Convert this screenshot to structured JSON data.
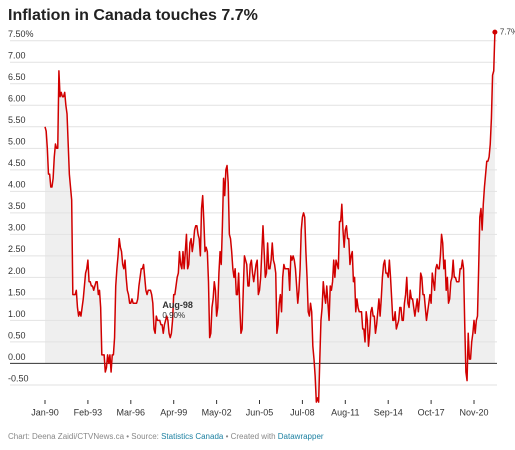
{
  "chart_data": {
    "type": "line",
    "title": "Inflation in Canada touches 7.7%",
    "categories": [
      "Jan-90",
      null,
      null,
      null,
      null,
      null,
      null,
      null,
      null,
      null,
      null,
      null,
      null,
      null,
      null,
      null,
      null,
      null,
      null,
      null,
      null,
      null,
      null,
      null,
      null,
      null,
      null,
      null,
      null,
      null,
      null,
      null,
      null,
      null,
      null,
      null,
      null,
      "Feb-93",
      null,
      null,
      null,
      null,
      null,
      null,
      null,
      null,
      null,
      null,
      null,
      null,
      null,
      null,
      null,
      null,
      null,
      null,
      null,
      null,
      null,
      null,
      null,
      null,
      null,
      null,
      null,
      null,
      null,
      null,
      null,
      null,
      null,
      null,
      null,
      null,
      "Mar-96",
      null,
      null,
      null,
      null,
      null,
      null,
      null,
      null,
      null,
      null,
      null,
      null,
      null,
      null,
      null,
      null,
      null,
      null,
      null,
      null,
      null,
      null,
      null,
      null,
      null,
      null,
      null,
      null,
      null,
      null,
      null,
      null,
      null,
      null,
      null,
      null,
      "Apr-99",
      null,
      null,
      null,
      null,
      null,
      null,
      null,
      null,
      null,
      null,
      null,
      null,
      null,
      null,
      null,
      null,
      null,
      null,
      null,
      null,
      null,
      null,
      null,
      null,
      null,
      null,
      null,
      null,
      null,
      null,
      null,
      null,
      null,
      null,
      null,
      null,
      "May-02",
      null,
      null,
      null,
      null,
      null,
      null,
      null,
      null,
      null,
      null,
      null,
      null,
      null,
      null,
      null,
      null,
      null,
      null,
      null,
      null,
      null,
      null,
      null,
      null,
      null,
      null,
      null,
      null,
      null,
      null,
      null,
      null,
      null,
      null,
      null,
      null,
      "Jun-05",
      null,
      null,
      null,
      null,
      null,
      null,
      null,
      null,
      null,
      null,
      null,
      null,
      null,
      null,
      null,
      null,
      null,
      null,
      null,
      null,
      null,
      null,
      null,
      null,
      null,
      null,
      null,
      null,
      null,
      null,
      null,
      null,
      null,
      null,
      null,
      null,
      "Jul-08",
      null,
      null,
      null,
      null,
      null,
      null,
      null,
      null,
      null,
      null,
      null,
      null,
      null,
      null,
      null,
      null,
      null,
      null,
      null,
      null,
      null,
      null,
      null,
      null,
      null,
      null,
      null,
      null,
      null,
      null,
      null,
      null,
      null,
      null,
      null,
      null,
      "Aug-11",
      null,
      null,
      null,
      null,
      null,
      null,
      null,
      null,
      null,
      null,
      null,
      null,
      null,
      null,
      null,
      null,
      null,
      null,
      null,
      null,
      null,
      null,
      null,
      null,
      null,
      null,
      null,
      null,
      null,
      null,
      null,
      null,
      null,
      null,
      null,
      null,
      "Sep-14",
      null,
      null,
      null,
      null,
      null,
      null,
      null,
      null,
      null,
      null,
      null,
      null,
      null,
      null,
      null,
      null,
      null,
      null,
      null,
      null,
      null,
      null,
      null,
      null,
      null,
      null,
      null,
      null,
      null,
      null,
      null,
      null,
      null,
      null,
      null,
      null,
      "Oct-17",
      null,
      null,
      null,
      null,
      null,
      null,
      null,
      null,
      null,
      null,
      null,
      null,
      null,
      null,
      null,
      null,
      null,
      null,
      null,
      null,
      null,
      null,
      null,
      null,
      null,
      null,
      null,
      null,
      null,
      null,
      null,
      null,
      null,
      null,
      null,
      null,
      "Nov-20",
      null,
      null,
      null,
      null,
      null,
      null,
      null,
      null,
      null,
      null,
      null,
      null,
      null,
      null,
      null,
      null,
      null,
      null
    ],
    "series": [
      {
        "color": "#d10000",
        "values": [
          5.5,
          5.4,
          5.0,
          4.4,
          4.4,
          4.1,
          4.1,
          4.3,
          4.8,
          5.1,
          5.0,
          5.0,
          6.8,
          6.2,
          6.3,
          6.2,
          6.2,
          6.3,
          6.0,
          5.8,
          5.1,
          4.4,
          4.1,
          3.8,
          1.6,
          1.6,
          1.6,
          1.7,
          1.3,
          1.1,
          1.2,
          1.1,
          1.3,
          1.5,
          1.8,
          2.1,
          2.2,
          2.4,
          1.9,
          1.9,
          1.8,
          1.8,
          1.7,
          1.8,
          1.9,
          1.9,
          1.6,
          1.7,
          1.3,
          0.2,
          0.2,
          0.2,
          -0.2,
          -0.1,
          0.2,
          0.0,
          0.2,
          -0.2,
          0.2,
          0.2,
          0.6,
          1.8,
          2.2,
          2.5,
          2.9,
          2.7,
          2.6,
          2.3,
          2.2,
          2.4,
          2.0,
          1.7,
          1.6,
          1.4,
          1.4,
          1.5,
          1.4,
          1.4,
          1.4,
          1.4,
          1.5,
          1.8,
          2.0,
          2.2,
          2.2,
          2.3,
          2.0,
          1.7,
          1.6,
          1.7,
          1.7,
          1.7,
          1.6,
          1.4,
          0.8,
          0.7,
          1.1,
          1.0,
          1.0,
          1.0,
          0.9,
          0.9,
          0.7,
          0.9,
          1.0,
          1.1,
          1.0,
          0.7,
          0.6,
          0.7,
          1.0,
          1.6,
          1.6,
          1.8,
          2.0,
          2.1,
          2.6,
          2.3,
          2.2,
          2.6,
          2.2,
          2.6,
          3.0,
          2.2,
          2.3,
          2.8,
          2.9,
          2.6,
          2.8,
          3.1,
          3.2,
          3.2,
          3.0,
          2.9,
          2.5,
          3.6,
          3.9,
          3.3,
          2.6,
          2.7,
          2.6,
          1.9,
          0.6,
          0.7,
          1.3,
          1.5,
          1.9,
          1.7,
          1.1,
          1.3,
          2.1,
          2.6,
          2.3,
          3.2,
          4.3,
          3.9,
          4.5,
          4.6,
          4.2,
          3.0,
          2.9,
          2.6,
          2.2,
          2.0,
          2.2,
          1.6,
          1.6,
          2.1,
          1.3,
          0.7,
          0.8,
          1.7,
          2.5,
          2.4,
          2.3,
          1.8,
          1.8,
          2.3,
          2.4,
          2.1,
          1.9,
          2.1,
          2.3,
          2.4,
          1.6,
          1.7,
          2.0,
          2.6,
          3.2,
          2.6,
          2.0,
          2.1,
          2.8,
          2.2,
          2.2,
          2.4,
          2.8,
          2.4,
          2.3,
          2.1,
          0.7,
          0.9,
          1.4,
          1.6,
          1.2,
          2.0,
          2.3,
          2.2,
          2.2,
          2.2,
          2.2,
          1.7,
          2.5,
          2.4,
          2.5,
          2.4,
          2.2,
          1.8,
          1.4,
          1.7,
          2.2,
          3.1,
          3.4,
          3.5,
          3.4,
          2.6,
          2.0,
          1.2,
          1.1,
          1.4,
          1.2,
          0.4,
          0.1,
          -0.3,
          -0.9,
          -0.8,
          -0.9,
          0.1,
          1.0,
          1.3,
          1.9,
          1.6,
          1.4,
          1.8,
          1.4,
          1.0,
          1.8,
          1.7,
          1.9,
          2.4,
          2.0,
          2.4,
          2.3,
          2.2,
          3.3,
          3.3,
          3.7,
          3.1,
          2.7,
          3.1,
          3.2,
          2.9,
          2.9,
          2.3,
          2.5,
          2.6,
          1.9,
          2.0,
          1.2,
          1.5,
          1.3,
          1.2,
          1.2,
          1.2,
          0.8,
          0.8,
          0.5,
          1.2,
          1.0,
          0.4,
          0.7,
          1.2,
          1.3,
          1.1,
          1.1,
          0.7,
          0.9,
          1.2,
          1.5,
          1.1,
          1.5,
          2.0,
          2.3,
          2.4,
          2.1,
          2.1,
          2.0,
          2.4,
          2.0,
          1.5,
          1.0,
          1.0,
          1.2,
          0.8,
          0.9,
          1.0,
          1.3,
          1.3,
          1.0,
          1.0,
          1.4,
          1.6,
          2.0,
          1.4,
          1.3,
          1.7,
          1.5,
          1.5,
          1.3,
          1.1,
          1.3,
          1.5,
          1.2,
          1.5,
          2.1,
          2.0,
          1.6,
          1.6,
          1.3,
          1.0,
          1.2,
          1.4,
          1.6,
          1.4,
          2.1,
          1.9,
          1.7,
          2.2,
          2.3,
          2.2,
          2.2,
          2.5,
          3.0,
          2.8,
          2.2,
          2.4,
          1.7,
          2.0,
          1.4,
          1.5,
          1.9,
          2.0,
          2.4,
          2.0,
          2.0,
          1.9,
          1.9,
          1.9,
          2.2,
          2.2,
          2.4,
          2.2,
          0.9,
          -0.2,
          -0.4,
          0.7,
          0.1,
          0.1,
          0.5,
          0.7,
          1.0,
          0.7,
          1.0,
          1.1,
          2.2,
          3.4,
          3.6,
          3.1,
          3.7,
          4.1,
          4.4,
          4.7,
          4.7,
          4.8,
          5.1,
          5.7,
          6.7,
          6.8,
          7.7
        ],
        "last_value_label": "7.7%"
      }
    ],
    "area_color": "#efefef",
    "ylim": [
      -0.85,
      7.75
    ],
    "yticks": [
      {
        "value": -0.5,
        "label": "-0.50"
      },
      {
        "value": 0,
        "label": "0.00"
      },
      {
        "value": 0.5,
        "label": "0.50"
      },
      {
        "value": 1,
        "label": "1.00"
      },
      {
        "value": 1.5,
        "label": "1.50"
      },
      {
        "value": 2,
        "label": "2.00"
      },
      {
        "value": 2.5,
        "label": "2.50"
      },
      {
        "value": 3,
        "label": "3.00"
      },
      {
        "value": 3.5,
        "label": "3.50"
      },
      {
        "value": 4,
        "label": "4.00"
      },
      {
        "value": 4.5,
        "label": "4.50"
      },
      {
        "value": 5,
        "label": "5.00"
      },
      {
        "value": 5.5,
        "label": "5.50"
      },
      {
        "value": 6,
        "label": "6.00"
      },
      {
        "value": 6.5,
        "label": "6.50"
      },
      {
        "value": 7,
        "label": "7.00"
      },
      {
        "value": 7.5,
        "label": "7.50%"
      }
    ],
    "grid": true,
    "annotation": {
      "category": "Aug-98",
      "value": 0.9,
      "value_label": "0.90%"
    },
    "footer": {
      "prefix": "Chart: Deena Zaidi/CTVNews.ca • Source:",
      "source": "Statistics Canada",
      "middle": "• Created with",
      "tool": "Datawrapper"
    }
  }
}
